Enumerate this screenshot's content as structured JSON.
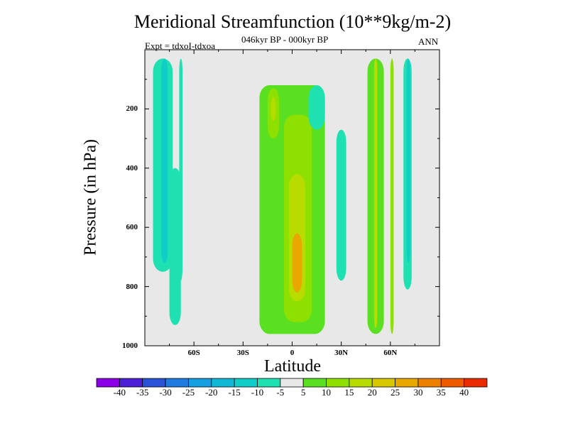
{
  "chart_data": {
    "type": "heatmap",
    "title": "Meridional Streamfunction (10**9kg/m-2)",
    "subtitle": "046kyr BP - 000kyr BP",
    "annotation_left": "Expt = tdxoI-tdxoa",
    "annotation_right": "ANN",
    "xlabel": "Latitude",
    "ylabel": "Pressure (in hPa)",
    "xlim": [
      -90,
      90
    ],
    "ylim": [
      1000,
      0
    ],
    "y_reversed": true,
    "x_ticks": [
      {
        "value": -60,
        "label": "60S"
      },
      {
        "value": -30,
        "label": "30S"
      },
      {
        "value": 0,
        "label": "0"
      },
      {
        "value": 30,
        "label": "30N"
      },
      {
        "value": 60,
        "label": "60N"
      }
    ],
    "y_ticks": [
      {
        "value": 200,
        "label": "200"
      },
      {
        "value": 400,
        "label": "400"
      },
      {
        "value": 600,
        "label": "600"
      },
      {
        "value": 800,
        "label": "800"
      },
      {
        "value": 1000,
        "label": "1000"
      }
    ],
    "colorbar": {
      "labels": [
        "-40",
        "-35",
        "-30",
        "-25",
        "-20",
        "-15",
        "-10",
        "-5",
        "5",
        "10",
        "15",
        "20",
        "25",
        "30",
        "35",
        "40"
      ],
      "colors": [
        "#8b00e6",
        "#4a1fd6",
        "#2a52d8",
        "#1f7be0",
        "#159fe0",
        "#11b8d6",
        "#11cdc8",
        "#1ee0b0",
        "#e8e8e8",
        "#5ae020",
        "#8ee000",
        "#b8dc00",
        "#d8c800",
        "#e8a800",
        "#ec8000",
        "#ee5a00",
        "#ea2a00"
      ]
    },
    "regions": [
      {
        "name": "sh-band-light",
        "lat": [
          -85,
          -73
        ],
        "p": [
          30,
          750
        ],
        "value": -10
      },
      {
        "name": "sh-band-light-lower",
        "lat": [
          -75,
          -68
        ],
        "p": [
          400,
          930
        ],
        "value": -10
      },
      {
        "name": "sh-band-core",
        "lat": [
          -80,
          -76
        ],
        "p": [
          30,
          720
        ],
        "value": -15
      },
      {
        "name": "sh-band-thin",
        "lat": [
          -69,
          -67
        ],
        "p": [
          30,
          780
        ],
        "value": -10
      },
      {
        "name": "tropics-main",
        "lat": [
          -20,
          20
        ],
        "p": [
          120,
          960
        ],
        "value": 5
      },
      {
        "name": "tropics-inner",
        "lat": [
          -5,
          12
        ],
        "p": [
          220,
          920
        ],
        "value": 10
      },
      {
        "name": "tropics-upper-core",
        "lat": [
          -15,
          -8
        ],
        "p": [
          130,
          300
        ],
        "value": 10
      },
      {
        "name": "tropics-upper-max",
        "lat": [
          -13,
          -10
        ],
        "p": [
          160,
          240
        ],
        "value": 15
      },
      {
        "name": "tropics-center",
        "lat": [
          -2,
          8
        ],
        "p": [
          420,
          850
        ],
        "value": 15
      },
      {
        "name": "tropics-center-max",
        "lat": [
          0,
          6
        ],
        "p": [
          620,
          820
        ],
        "value": 25
      },
      {
        "name": "upper-cell",
        "lat": [
          10,
          20
        ],
        "p": [
          120,
          270
        ],
        "value": -10
      },
      {
        "name": "nh-subtrop-cell",
        "lat": [
          27,
          33
        ],
        "p": [
          270,
          780
        ],
        "value": -10
      },
      {
        "name": "nh-green-band",
        "lat": [
          46,
          56
        ],
        "p": [
          30,
          960
        ],
        "value": 5
      },
      {
        "name": "nh-yellow-core",
        "lat": [
          50,
          52
        ],
        "p": [
          30,
          940
        ],
        "value": 15
      },
      {
        "name": "nh-band-60",
        "lat": [
          60,
          62
        ],
        "p": [
          30,
          960
        ],
        "value": 10
      },
      {
        "name": "nh-cyan-band",
        "lat": [
          68,
          73
        ],
        "p": [
          30,
          810
        ],
        "value": -10
      },
      {
        "name": "nh-cyan-core",
        "lat": [
          70,
          72
        ],
        "p": [
          30,
          720
        ],
        "value": -15
      }
    ]
  }
}
